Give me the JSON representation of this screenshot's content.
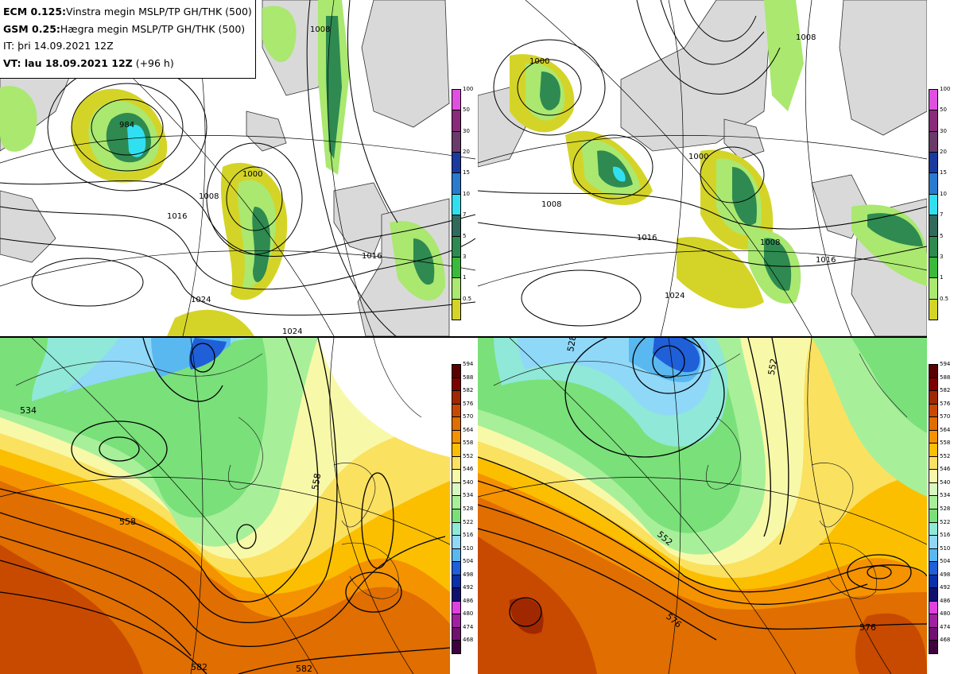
{
  "header": {
    "line1_bold": "ECM 0.125:",
    "line1_text": "Vinstra megin MSLP/TP GH/THK (500)",
    "line2_bold": "GSM 0.25:",
    "line2_text": "Hægra megin MSLP/TP GH/THK (500)",
    "line3_text": "IT: þri 14.09.2021 12Z",
    "line4_bold": "VT: lau 18.09.2021 12Z",
    "line4_text": " (+96 h)"
  },
  "precip_legend": {
    "labels": [
      "100",
      "50",
      "30",
      "20",
      "15",
      "10",
      "7",
      "5",
      "3",
      "1",
      "0.5"
    ],
    "colors": [
      "#e050e0",
      "#8a2a7a",
      "#6a3a6a",
      "#1a3aa0",
      "#2a7ad0",
      "#30e0f0",
      "#306a5a",
      "#2e8a50",
      "#3aba3a",
      "#aae870",
      "#d4d428"
    ]
  },
  "thk_legend": {
    "labels": [
      "594",
      "588",
      "582",
      "576",
      "570",
      "564",
      "558",
      "552",
      "546",
      "540",
      "534",
      "528",
      "522",
      "516",
      "510",
      "504",
      "498",
      "492",
      "486",
      "480",
      "474",
      "468"
    ],
    "colors": [
      "#5a0000",
      "#800000",
      "#a02800",
      "#c84a00",
      "#e06e00",
      "#f59200",
      "#fbbf00",
      "#fbe160",
      "#f8f9a8",
      "#d8f8c0",
      "#a8ef9a",
      "#7ae07a",
      "#8fe8d8",
      "#8fd8f8",
      "#5ab8f0",
      "#1f5fd8",
      "#0a2fa8",
      "#101070",
      "#e040e0",
      "#a020a0",
      "#701070",
      "#400040"
    ]
  },
  "ecm_top_labels": [
    "1008",
    "1016",
    "1016",
    "1024",
    "1024",
    "1008",
    "1000",
    "984"
  ],
  "gsm_top_labels": [
    "1000",
    "1008",
    "1016",
    "1024",
    "1008",
    "1000",
    "1016",
    "1008"
  ],
  "ecm_bottom_labels": [
    "558",
    "558",
    "582",
    "582",
    "534"
  ],
  "gsm_bottom_labels": [
    "552",
    "552",
    "576",
    "576",
    "528"
  ]
}
